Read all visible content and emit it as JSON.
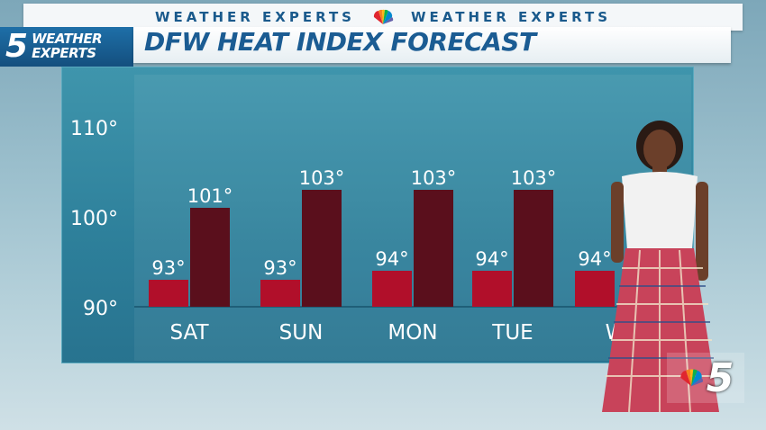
{
  "banner": {
    "text_left": "WEATHER EXPERTS",
    "text_right": "WEATHER EXPERTS"
  },
  "brand": {
    "number": "5",
    "line1": "WEATHER",
    "line2": "EXPERTS"
  },
  "title": "DFW HEAT INDEX FORECAST",
  "corner_logo": {
    "number": "5"
  },
  "colors": {
    "low_bar": "#b10f2a",
    "high_bar": "#5a0f1c",
    "panel": "#2f87a1",
    "title_text": "#1b5c93"
  },
  "chart_data": {
    "type": "bar",
    "title": "DFW HEAT INDEX FORECAST",
    "xlabel": "",
    "ylabel": "",
    "ylim": [
      90,
      110
    ],
    "yticks": [
      "90°",
      "100°",
      "110°"
    ],
    "ytick_values": [
      90,
      100,
      110
    ],
    "categories": [
      "SAT",
      "SUN",
      "MON",
      "TUE",
      "W"
    ],
    "series": [
      {
        "values": [
          93,
          93,
          94,
          94,
          94
        ],
        "labels": [
          "93°",
          "93°",
          "94°",
          "94°",
          "94°"
        ]
      },
      {
        "values": [
          101,
          103,
          103,
          103,
          null
        ],
        "labels": [
          "101°",
          "103°",
          "103°",
          "103°",
          ""
        ]
      }
    ]
  }
}
